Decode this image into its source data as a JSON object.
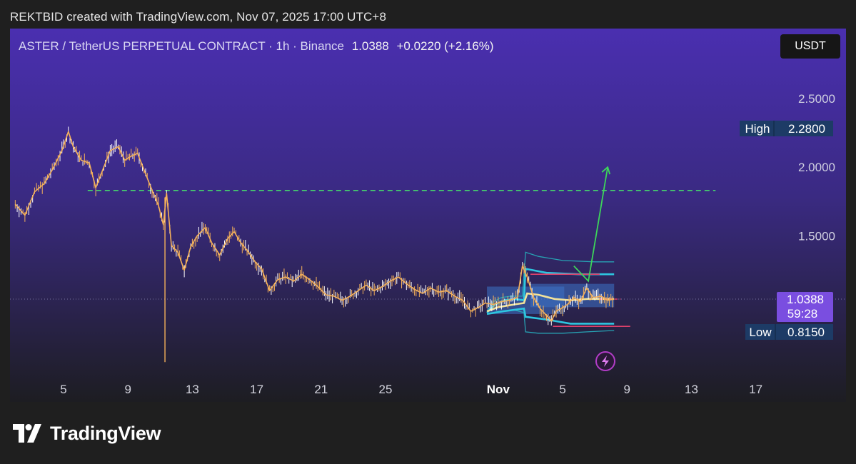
{
  "caption": "REKTBID created with TradingView.com, Nov 07, 2025 17:00 UTC+8",
  "header": {
    "symbol": "ASTER / TetherUS PERPETUAL CONTRACT · 1h · Binance",
    "price": "1.0388",
    "change": "+0.0220 (+2.16%)",
    "currency": "USDT"
  },
  "brand": {
    "name": "TradingView"
  },
  "colors": {
    "bg_top": "#4a2fb0",
    "bg_bottom": "#1d1d22",
    "candles": "#f5b15a",
    "wick": "#ffffff",
    "dashed_level": "#46d36c",
    "arrow": "#3dd55a",
    "band_outer": "#27a2b3",
    "band_mid": "#2ec6e0",
    "band_fill": "#3c72c7",
    "vwap": "#f2e29a",
    "range_line": "#e0426c",
    "tag_blue": "#1d3b66",
    "tag_purple": "#7a4ee0"
  },
  "chart_data": {
    "type": "line",
    "title": "ASTER / TetherUS PERPETUAL CONTRACT · 1h · Binance",
    "ylim": [
      0.55,
      2.75
    ],
    "y_ticks": [
      "2.5000",
      "2.0000",
      "1.5000"
    ],
    "y_tick_values": [
      2.5,
      2.0,
      1.5
    ],
    "x_ticks": [
      "5",
      "9",
      "13",
      "17",
      "21",
      "25",
      "Nov",
      "5",
      "9",
      "13",
      "17"
    ],
    "x_tick_days": [
      5,
      9,
      13,
      17,
      21,
      25,
      32,
      36,
      40,
      44,
      48
    ],
    "series": [
      {
        "x_day": [
          2.0,
          2.6,
          3.2,
          3.8,
          4.3,
          4.9,
          5.3,
          5.6,
          6.1,
          6.6,
          7.0,
          7.5,
          7.9,
          8.4,
          8.8,
          9.2,
          9.6,
          10.0,
          10.4,
          10.9,
          11.2,
          11.4,
          11.7,
          12.1,
          12.5,
          12.9,
          13.3,
          13.8,
          14.2,
          14.7,
          15.2,
          15.6,
          16.0,
          16.5,
          16.9,
          17.3,
          17.8,
          18.3,
          18.8,
          19.3,
          19.8,
          20.3,
          20.8,
          21.3,
          21.8,
          22.3,
          22.8,
          23.3,
          23.8,
          24.3,
          24.8,
          25.3,
          25.8,
          26.3,
          26.8,
          27.3,
          27.8,
          28.3,
          28.8,
          29.3,
          29.8,
          30.3,
          30.8,
          31.2,
          31.7,
          32.2,
          32.7,
          33.2,
          33.5,
          33.8,
          34.2,
          34.6,
          35.0,
          35.3,
          35.6,
          35.9,
          36.3,
          36.7,
          37.1,
          37.5,
          37.9,
          38.4,
          38.8,
          39.2
        ],
        "close": [
          1.73,
          1.65,
          1.82,
          1.88,
          1.98,
          2.12,
          2.26,
          2.15,
          2.05,
          2.03,
          1.85,
          2.0,
          2.12,
          2.15,
          2.05,
          2.08,
          2.1,
          1.98,
          1.86,
          1.72,
          1.58,
          1.81,
          1.43,
          1.38,
          1.25,
          1.42,
          1.5,
          1.56,
          1.45,
          1.36,
          1.48,
          1.53,
          1.45,
          1.38,
          1.31,
          1.26,
          1.1,
          1.18,
          1.2,
          1.17,
          1.22,
          1.18,
          1.13,
          1.07,
          1.06,
          1.03,
          1.06,
          1.1,
          1.14,
          1.1,
          1.13,
          1.17,
          1.2,
          1.15,
          1.11,
          1.08,
          1.12,
          1.09,
          1.1,
          1.06,
          1.03,
          0.95,
          0.98,
          1.01,
          1.0,
          1.02,
          1.03,
          1.05,
          1.28,
          1.2,
          1.05,
          0.97,
          0.92,
          0.88,
          0.95,
          0.97,
          1.0,
          1.05,
          1.02,
          1.12,
          1.05,
          1.06,
          1.03,
          1.0388
        ]
      }
    ],
    "dashed_level": 1.83,
    "last_price": 1.0388,
    "countdown": "59:28",
    "high": {
      "label": "High",
      "value": "2.2800"
    },
    "low": {
      "label": "Low",
      "value": "0.8150"
    },
    "range_high": 1.22,
    "range_low": 0.84,
    "projection_arrow": {
      "from_day": 36.7,
      "from_y": 1.28,
      "via_day": 37.6,
      "via_y": 1.17,
      "to_day": 38.8,
      "to_y": 2.0
    },
    "grid": false,
    "legend": "none"
  }
}
